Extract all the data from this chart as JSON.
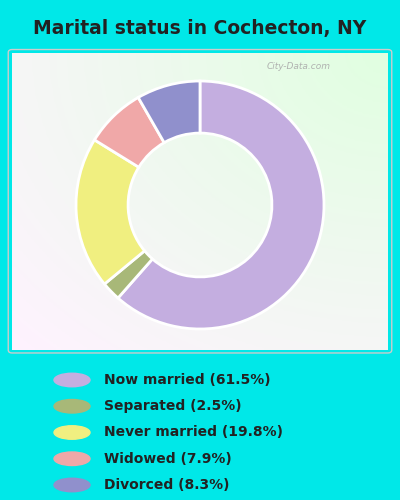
{
  "title": "Marital status in Cochecton, NY",
  "title_fontsize": 13.5,
  "title_color": "#222222",
  "background_cyan": "#00e8e8",
  "chart_panel_color": "#e8f5e8",
  "slices": [
    {
      "label": "Now married (61.5%)",
      "value": 61.5,
      "color": "#c4aee0"
    },
    {
      "label": "Separated (2.5%)",
      "value": 2.5,
      "color": "#a8b878"
    },
    {
      "label": "Never married (19.8%)",
      "value": 19.8,
      "color": "#f0ef80"
    },
    {
      "label": "Widowed (7.9%)",
      "value": 7.9,
      "color": "#f0a8a8"
    },
    {
      "label": "Divorced (8.3%)",
      "value": 8.3,
      "color": "#9090cc"
    }
  ],
  "legend_fontsize": 10,
  "watermark": "City-Data.com",
  "donut_width": 0.42,
  "start_angle": 90,
  "edge_color": "white",
  "edge_linewidth": 2.0
}
